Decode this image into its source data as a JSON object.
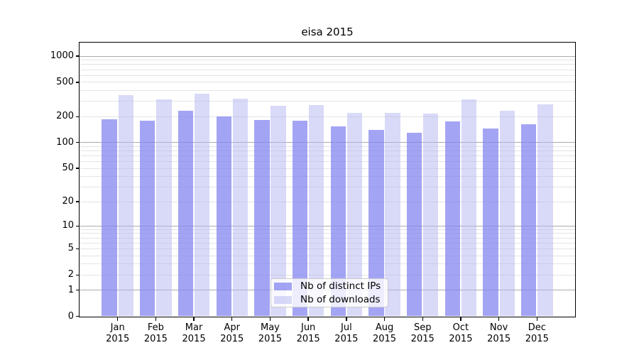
{
  "chart_data": {
    "type": "bar",
    "title": "eisa 2015",
    "categories": [
      "Jan",
      "Feb",
      "Mar",
      "Apr",
      "May",
      "Jun",
      "Jul",
      "Aug",
      "Sep",
      "Oct",
      "Nov",
      "Dec"
    ],
    "x_tick_year": "2015",
    "series": [
      {
        "name": "Nb of distinct IPs",
        "color": "rgba(134,134,240,0.75)",
        "values": [
          186,
          178,
          236,
          200,
          183,
          178,
          155,
          141,
          129,
          175,
          146,
          164
        ]
      },
      {
        "name": "Nb of downloads",
        "color": "rgba(180,180,242,0.5)",
        "values": [
          354,
          318,
          371,
          322,
          266,
          274,
          220,
          220,
          217,
          318,
          236,
          279
        ]
      }
    ],
    "y_scale": "log10(1+x)",
    "ylim": [
      0,
      1434
    ],
    "y_ticks": [
      0,
      1,
      2,
      5,
      10,
      20,
      50,
      100,
      200,
      500,
      1000
    ],
    "y_gridlines": {
      "major": [
        1,
        10,
        100,
        1000
      ],
      "minor": [
        2,
        3,
        4,
        5,
        6,
        7,
        8,
        9,
        20,
        30,
        40,
        50,
        60,
        70,
        80,
        90,
        200,
        300,
        400,
        500,
        600,
        700,
        800,
        900
      ],
      "major_color": "#ababab",
      "minor_color": "#e4e4e4"
    },
    "axis_color": "#000000",
    "background_color": "#ffffff",
    "legend": {
      "position": "bottom-center",
      "entries": [
        "Nb of distinct IPs",
        "Nb of downloads"
      ]
    }
  }
}
